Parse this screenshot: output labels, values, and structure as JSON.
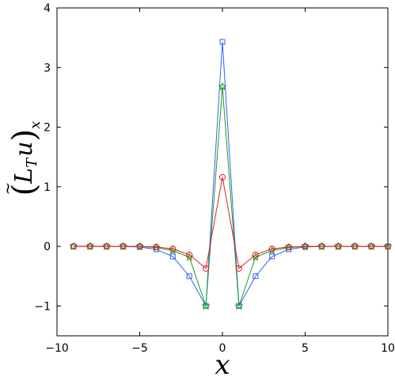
{
  "chart_data": {
    "type": "line",
    "xlabel": "x",
    "ylabel": "(L̃_T u)_x",
    "xlim": [
      -10,
      10
    ],
    "ylim": [
      -1.5,
      4
    ],
    "xticks": [
      -10,
      -5,
      0,
      5,
      10
    ],
    "yticks": [
      -1,
      0,
      1,
      2,
      3,
      4
    ],
    "xtick_labels": [
      "−10",
      "−5",
      "0",
      "5",
      "10"
    ],
    "ytick_labels": [
      "−1",
      "0",
      "1",
      "2",
      "3",
      "4"
    ],
    "grid": false,
    "legend": "none",
    "x": [
      -9,
      -8,
      -7,
      -6,
      -5,
      -4,
      -3,
      -2,
      -1,
      0,
      1,
      2,
      3,
      4,
      5,
      6,
      7,
      8,
      9,
      10
    ],
    "series": [
      {
        "color": "#3060ff",
        "marker": "square",
        "values": [
          0,
          0,
          0,
          0,
          -0.01,
          -0.05,
          -0.17,
          -0.5,
          -1.0,
          3.43,
          -1.0,
          -0.5,
          -0.17,
          -0.05,
          -0.01,
          0,
          0,
          0,
          0,
          0
        ]
      },
      {
        "color": "#1f9a1f",
        "marker": "star",
        "values": [
          0,
          0,
          0,
          0,
          0,
          -0.02,
          -0.07,
          -0.18,
          -1.0,
          2.68,
          -1.0,
          -0.18,
          -0.07,
          -0.02,
          0,
          0,
          0,
          0,
          0,
          0
        ]
      },
      {
        "color": "#e02020",
        "marker": "circle",
        "values": [
          0,
          0,
          0,
          0,
          0,
          -0.01,
          -0.04,
          -0.14,
          -0.37,
          1.16,
          -0.37,
          -0.14,
          -0.04,
          -0.01,
          0,
          0,
          0,
          0,
          0,
          0
        ]
      }
    ]
  }
}
